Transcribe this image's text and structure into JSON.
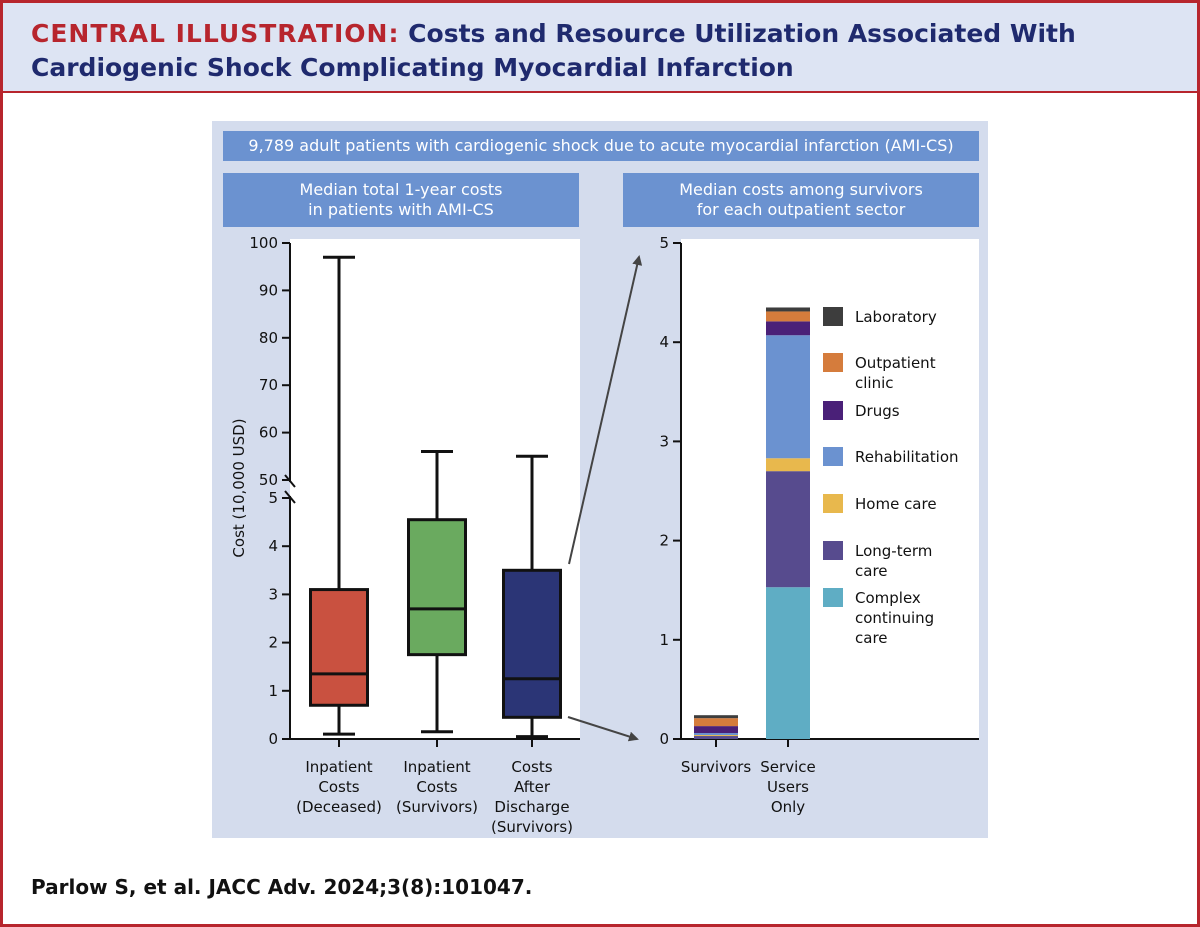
{
  "header": {
    "lead": "CENTRAL ILLUSTRATION:",
    "title": "Costs and Resource Utilization Associated With Cardiogenic Shock Complicating Myocardial Infarction"
  },
  "top_banner": "9,789 adult patients with cardiogenic shock due to acute myocardial infarction (AMI-CS)",
  "left_banner": [
    "Median total 1-year costs",
    "in patients with AMI-CS"
  ],
  "right_banner": [
    "Median costs among survivors",
    "for each outpatient sector"
  ],
  "citation": "Parlow S, et al. JACC Adv. 2024;3(8):101047.",
  "chart_data": [
    {
      "type": "box",
      "ylabel": "Cost (10,000 USD)",
      "axis_break": true,
      "ylim_lower": [
        0,
        5
      ],
      "ylim_upper": [
        50,
        100
      ],
      "yticks_lower": [
        0,
        1,
        2,
        3,
        4,
        5
      ],
      "yticks_upper": [
        50,
        60,
        70,
        80,
        90,
        100
      ],
      "categories": [
        [
          "Inpatient",
          "Costs",
          "(Deceased)"
        ],
        [
          "Inpatient",
          "Costs",
          "(Survivors)"
        ],
        [
          "Costs",
          "After",
          "Discharge",
          "(Survivors)"
        ]
      ],
      "boxes": [
        {
          "whisker_low": 0.1,
          "q1": 0.7,
          "median": 1.35,
          "q3": 3.1,
          "whisker_high": 97,
          "color": "#c95140"
        },
        {
          "whisker_low": 0.15,
          "q1": 1.75,
          "median": 2.7,
          "q3": 4.55,
          "whisker_high": 56,
          "color": "#6aaa5f"
        },
        {
          "whisker_low": 0.05,
          "q1": 0.45,
          "median": 1.25,
          "q3": 3.5,
          "whisker_high": 55,
          "color": "#2b3576"
        }
      ]
    },
    {
      "type": "stacked-bar",
      "ylim": [
        0,
        5
      ],
      "yticks": [
        0,
        1,
        2,
        3,
        4,
        5
      ],
      "categories": [
        [
          "Survivors"
        ],
        [
          "Service",
          "Users",
          "Only"
        ]
      ],
      "series": [
        {
          "name": [
            "Complex",
            "continuing",
            "care"
          ],
          "color": "#5fadc4",
          "values": [
            0.0,
            1.53
          ]
        },
        {
          "name": [
            "Long-term",
            "care"
          ],
          "color": "#574b8e",
          "values": [
            0.03,
            1.17
          ]
        },
        {
          "name": [
            "Home care"
          ],
          "color": "#e8b84d",
          "values": [
            0.01,
            0.13
          ]
        },
        {
          "name": [
            "Rehabilitation"
          ],
          "color": "#6b92d0",
          "values": [
            0.02,
            1.24
          ]
        },
        {
          "name": [
            "Drugs"
          ],
          "color": "#4a2078",
          "values": [
            0.07,
            0.14
          ]
        },
        {
          "name": [
            "Outpatient",
            "clinic"
          ],
          "color": "#d57c3c",
          "values": [
            0.08,
            0.1
          ]
        },
        {
          "name": [
            "Laboratory"
          ],
          "color": "#3d3d3d",
          "values": [
            0.03,
            0.04
          ]
        }
      ]
    }
  ]
}
